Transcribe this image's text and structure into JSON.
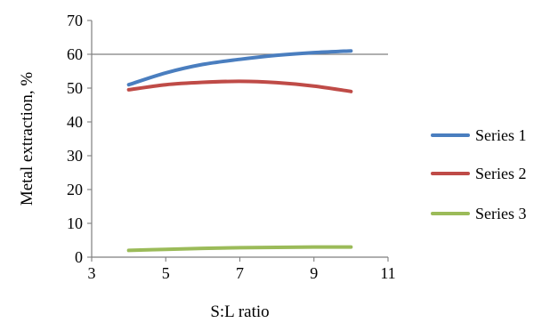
{
  "chart_data": {
    "type": "line",
    "title": "",
    "xlabel": "S:L ratio",
    "ylabel": "Metal extraction, %",
    "xlim": [
      3,
      11
    ],
    "ylim": [
      0,
      70
    ],
    "xticks": [
      3,
      5,
      7,
      9,
      11
    ],
    "yticks": [
      0,
      10,
      20,
      30,
      40,
      50,
      60,
      70
    ],
    "x_tick_labels": [
      "3",
      "5",
      "7",
      "9",
      "11"
    ],
    "y_tick_labels": [
      "0",
      "10",
      "20",
      "30",
      "40",
      "50",
      "60",
      "70"
    ],
    "horizontal_reference_line": 60,
    "grid": false,
    "legend_position": "right",
    "series": [
      {
        "name": "Series 1",
        "color": "#4a7ebf",
        "x": [
          4,
          5,
          6,
          7,
          8,
          9,
          10
        ],
        "y": [
          51,
          54.5,
          57,
          58.5,
          59.7,
          60.5,
          61
        ]
      },
      {
        "name": "Series 2",
        "color": "#bf4b47",
        "x": [
          4,
          5,
          6,
          7,
          8,
          9,
          10
        ],
        "y": [
          49.5,
          51,
          51.7,
          52,
          51.6,
          50.6,
          49
        ]
      },
      {
        "name": "Series 3",
        "color": "#9bbb59",
        "x": [
          4,
          5,
          6,
          7,
          8,
          9,
          10
        ],
        "y": [
          2,
          2.3,
          2.6,
          2.8,
          2.9,
          3,
          3
        ]
      }
    ]
  }
}
